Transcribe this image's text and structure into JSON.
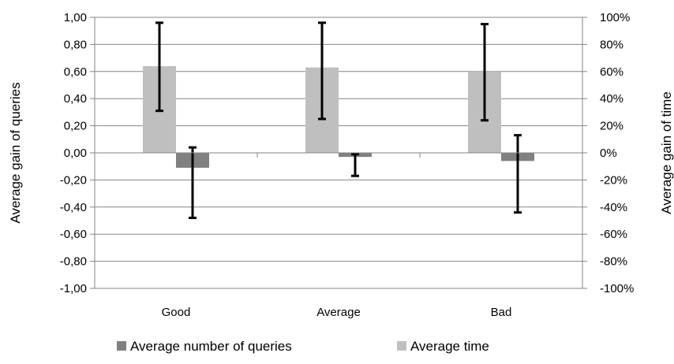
{
  "chart_data": {
    "type": "bar",
    "categories": [
      "Good",
      "Average",
      "Bad"
    ],
    "y_left": {
      "label": "Average gain of queries",
      "lim": [
        -1.0,
        1.0
      ],
      "ticks": [
        "-1,00",
        "-0,80",
        "-0,60",
        "-0,40",
        "-0,20",
        "0,00",
        "0,20",
        "0,40",
        "0,60",
        "0,80",
        "1,00"
      ]
    },
    "y_right": {
      "label": "Average gain of time",
      "lim": [
        -100,
        100
      ],
      "ticks": [
        "-100%",
        "-80%",
        "-60%",
        "-40%",
        "-20%",
        "0%",
        "20%",
        "40%",
        "60%",
        "80%",
        "100%"
      ]
    },
    "series": [
      {
        "name": "Average time",
        "axis": "right",
        "color": "#bfbfbf",
        "values": [
          64,
          63,
          60
        ],
        "error_low": [
          31,
          25,
          24
        ],
        "error_high": [
          96,
          96,
          95
        ]
      },
      {
        "name": "Average number of queries",
        "axis": "left",
        "color": "#808080",
        "values": [
          -0.11,
          -0.03,
          -0.06
        ],
        "error_low": [
          -0.48,
          -0.17,
          -0.44
        ],
        "error_high": [
          0.04,
          -0.01,
          0.13
        ]
      }
    ],
    "grid": true,
    "legend_position": "bottom",
    "legend_order": [
      "Average number of queries",
      "Average time"
    ]
  }
}
